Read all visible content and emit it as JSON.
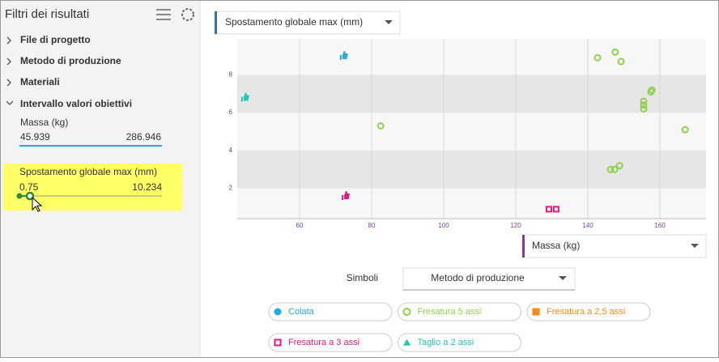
{
  "sidebar": {
    "title": "Filtri dei risultati",
    "sections": [
      "File di progetto",
      "Metodo di produzione",
      "Materiali",
      "Intervallo valori obiettivi"
    ],
    "filters": [
      {
        "label": "Massa (kg)",
        "min": "45.939",
        "max": "286.946"
      },
      {
        "label": "Spostamento globale max (mm)",
        "min": "0.75",
        "max": "10.234"
      }
    ]
  },
  "y_selector": "Spostamento globale max (mm)",
  "x_selector": "Massa (kg)",
  "symbols": {
    "label": "Simboli",
    "value": "Metodo di produzione"
  },
  "chart_data": {
    "type": "scatter",
    "xlim": [
      42.7,
      172.8
    ],
    "ylim": [
      0.4,
      9.9
    ],
    "xticks": [
      60,
      80,
      100,
      120,
      140,
      160
    ],
    "yticks": [
      2,
      4,
      6,
      8
    ],
    "grid": true,
    "series": [
      {
        "name": "Colata",
        "color": "#29a8e0",
        "marker": "circle",
        "x": [
          72.1
        ],
        "y": [
          9.0
        ],
        "thumb": [
          true
        ]
      },
      {
        "name": "Fresatura 5 assi",
        "color": "#8fd14f",
        "marker": "ring",
        "x": [
          142.7,
          147.6,
          149.2,
          82.5,
          157.8,
          157.5,
          155.5,
          155.5,
          155.5,
          167.0,
          146.3,
          147.4,
          148.8
        ],
        "y": [
          8.9,
          9.2,
          8.7,
          5.3,
          7.2,
          7.1,
          6.6,
          6.4,
          6.2,
          5.1,
          3.0,
          3.0,
          3.2
        ],
        "thumb": [
          false,
          false,
          false,
          false,
          false,
          false,
          false,
          false,
          false,
          false,
          false,
          false,
          false
        ]
      },
      {
        "name": "Fresatura a 2,5 assi",
        "color": "#f68a1e",
        "marker": "square",
        "x": [],
        "y": [],
        "thumb": []
      },
      {
        "name": "Fresatura a 3 assi",
        "color": "#e6197a",
        "marker": "open-square",
        "x": [
          72.6,
          129.2,
          131.2
        ],
        "y": [
          1.6,
          0.9,
          0.9
        ],
        "thumb": [
          true,
          false,
          false
        ]
      },
      {
        "name": "Taglio a 2 assi",
        "color": "#1dc9b5",
        "marker": "triangle",
        "x": [
          44.7
        ],
        "y": [
          6.8
        ],
        "thumb": [
          true
        ]
      }
    ]
  }
}
